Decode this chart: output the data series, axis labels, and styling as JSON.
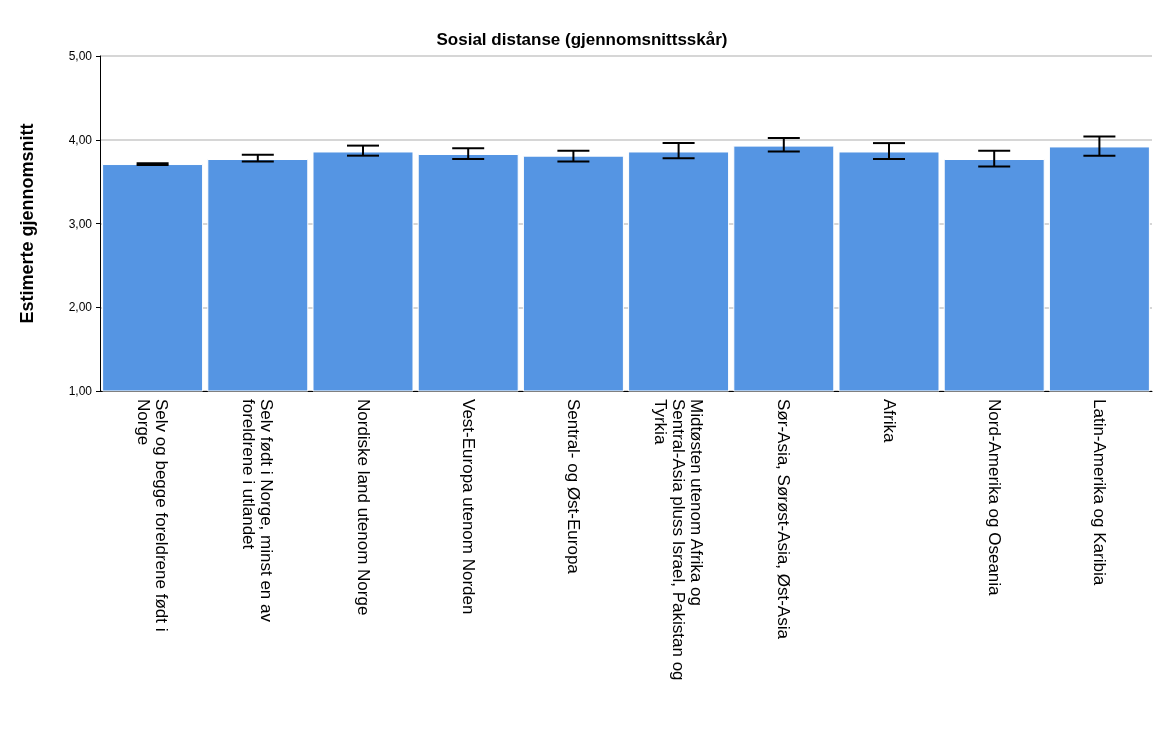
{
  "chart_data": {
    "type": "bar",
    "title": "Sosial distanse (gjennomsnittsskår)",
    "ylabel": "Estimerte gjennomsnitt",
    "categories": [
      "Selv og begge foreldrene født i Norge",
      "Selv født i Norge, minst en av foreldrene i utlandet",
      "Nordiske land utenom Norge",
      "Vest-Europa utenom Norden",
      "Sentral- og Øst-Europa",
      "Midtøsten utenom Afrika og Sentral-Asia pluss Israel, Pakistan og Tyrkia",
      "Sør-Asia, Sørøst-Asia, Øst-Asia",
      "Afrika",
      "Nord-Amerika og Oseania",
      "Latin-Amerika og Karibia"
    ],
    "values": [
      3.71,
      3.77,
      3.86,
      3.83,
      3.81,
      3.86,
      3.93,
      3.86,
      3.77,
      3.92
    ],
    "errors": [
      [
        3.7,
        3.72
      ],
      [
        3.74,
        3.82
      ],
      [
        3.81,
        3.93
      ],
      [
        3.77,
        3.9
      ],
      [
        3.74,
        3.87
      ],
      [
        3.78,
        3.96
      ],
      [
        3.86,
        4.02
      ],
      [
        3.77,
        3.96
      ],
      [
        3.68,
        3.87
      ],
      [
        3.81,
        4.04
      ]
    ],
    "color": "#5595e3",
    "ylim": [
      1,
      5
    ],
    "yticks": [
      {
        "value": 1,
        "label": "1,00"
      },
      {
        "value": 2,
        "label": "2,00"
      },
      {
        "value": 3,
        "label": "3,00"
      },
      {
        "value": 4,
        "label": "4,00"
      },
      {
        "value": 5,
        "label": "5,00"
      }
    ],
    "grid": "y"
  }
}
